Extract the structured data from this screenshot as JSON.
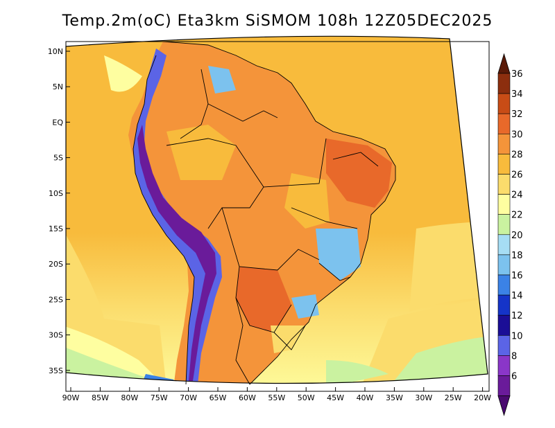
{
  "title": "Temp.2m(oC) Eta3km SiSMOM 108h 12Z05DEC2025",
  "latitude_labels": [
    "10N",
    "5N",
    "EQ",
    "5S",
    "10S",
    "15S",
    "20S",
    "25S",
    "30S",
    "35S"
  ],
  "longitude_labels": [
    "90W",
    "85W",
    "80W",
    "75W",
    "70W",
    "65W",
    "60W",
    "55W",
    "50W",
    "45W",
    "40W",
    "35W",
    "30W",
    "25W",
    "20W"
  ],
  "colorbar": {
    "labels": [
      "36",
      "34",
      "32",
      "30",
      "28",
      "26",
      "24",
      "22",
      "20",
      "18",
      "16",
      "14",
      "12",
      "10",
      "8",
      "6"
    ],
    "colors": [
      "#5a1a08",
      "#8c2e0e",
      "#c84c16",
      "#e8692a",
      "#f4943a",
      "#f8bb3c",
      "#fbdc6c",
      "#fefea0",
      "#caf2a0",
      "#a6ddf4",
      "#7cc2ee",
      "#3b82e6",
      "#1534c8",
      "#1b0e96",
      "#5b64e6",
      "#8a36c8",
      "#6a1b9a",
      "#4a0a70"
    ]
  },
  "colors": {
    "ocean_warm": "#f8bb3c",
    "ocean_mild": "#fbdc6c",
    "ocean_cool": "#fefea0",
    "land_hot": "#e8692a",
    "land_warm": "#f4943a",
    "andes_cold": "#6a1b9a",
    "andes_cool": "#5b64e6"
  }
}
